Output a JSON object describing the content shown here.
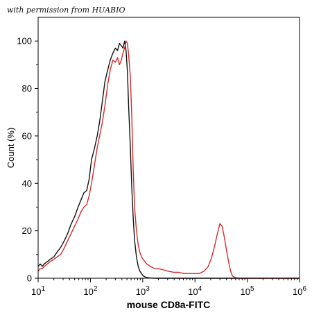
{
  "watermark": "with permission from HUABIO",
  "chart_data": {
    "type": "line",
    "title": "",
    "xlabel": "mouse CD8a-FITC",
    "ylabel": "Count (%)",
    "xscale": "log",
    "xlim": [
      10,
      1000000
    ],
    "ylim": [
      0,
      110
    ],
    "x_ticks": [
      {
        "base": "10",
        "exp": "1"
      },
      {
        "base": "10",
        "exp": "2"
      },
      {
        "base": "10",
        "exp": "3"
      },
      {
        "base": "10",
        "exp": "4"
      },
      {
        "base": "10",
        "exp": "5"
      },
      {
        "base": "10",
        "exp": "6"
      }
    ],
    "y_ticks": [
      "0",
      "20",
      "40",
      "60",
      "80",
      "100"
    ],
    "y_tick_values": [
      0,
      20,
      40,
      60,
      80,
      100
    ],
    "x_tick_values": [
      10,
      100,
      1000,
      10000,
      100000,
      1000000
    ],
    "grid": false,
    "legend": "none",
    "series": [
      {
        "color": "#111111",
        "x": [
          10,
          11,
          12,
          13,
          15,
          17,
          20,
          23,
          27,
          32,
          37,
          43,
          50,
          58,
          66,
          75,
          85,
          95,
          105,
          120,
          135,
          150,
          170,
          190,
          215,
          240,
          270,
          300,
          330,
          360,
          390,
          420,
          450,
          480,
          510,
          540,
          580,
          620,
          660,
          700,
          760,
          820,
          880,
          950,
          1020,
          1100,
          1200,
          1400,
          1700,
          2000,
          3000,
          5000,
          10000,
          100000,
          1000000
        ],
        "y": [
          5,
          6,
          5,
          6,
          7,
          8,
          9,
          11,
          13,
          16,
          19,
          23,
          26,
          30,
          33,
          36,
          37,
          42,
          50,
          55,
          60,
          66,
          75,
          83,
          88,
          92,
          95,
          97,
          96,
          99,
          98,
          97,
          100,
          96,
          87,
          72,
          55,
          38,
          25,
          16,
          9,
          5,
          3,
          2,
          1,
          0.6,
          0.3,
          0.1,
          0,
          0,
          0,
          0,
          0,
          0,
          0
        ]
      },
      {
        "color": "#d42a2a",
        "x": [
          10,
          11,
          12,
          13,
          15,
          17,
          20,
          23,
          27,
          32,
          37,
          43,
          50,
          58,
          66,
          75,
          85,
          95,
          105,
          120,
          135,
          150,
          170,
          190,
          215,
          240,
          270,
          300,
          330,
          360,
          390,
          420,
          450,
          480,
          510,
          540,
          580,
          620,
          660,
          700,
          760,
          820,
          880,
          950,
          1020,
          1100,
          1200,
          1400,
          1700,
          2000,
          2500,
          3000,
          4000,
          5000,
          6000,
          7000,
          8000,
          10000,
          12000,
          15000,
          18000,
          21000,
          24000,
          27000,
          30000,
          33000,
          36000,
          40000,
          44000,
          48000,
          52000,
          56000,
          62000,
          70000,
          80000,
          100000,
          1000000
        ],
        "y": [
          3,
          4,
          4,
          5,
          6,
          7,
          8,
          9,
          10,
          13,
          16,
          19,
          22,
          25,
          28,
          30,
          31,
          35,
          40,
          48,
          55,
          60,
          66,
          73,
          82,
          88,
          92,
          91,
          93,
          90,
          92,
          95,
          97,
          100,
          99,
          94,
          85,
          68,
          45,
          30,
          20,
          14,
          11,
          9,
          8,
          7,
          6,
          5,
          4,
          4,
          3.5,
          3,
          2.5,
          2.5,
          2,
          2,
          2,
          2,
          2,
          3,
          5,
          9,
          14,
          19,
          23,
          22,
          18,
          12,
          7,
          3,
          1,
          0.5,
          0.2,
          0,
          0,
          0,
          0
        ]
      }
    ]
  }
}
